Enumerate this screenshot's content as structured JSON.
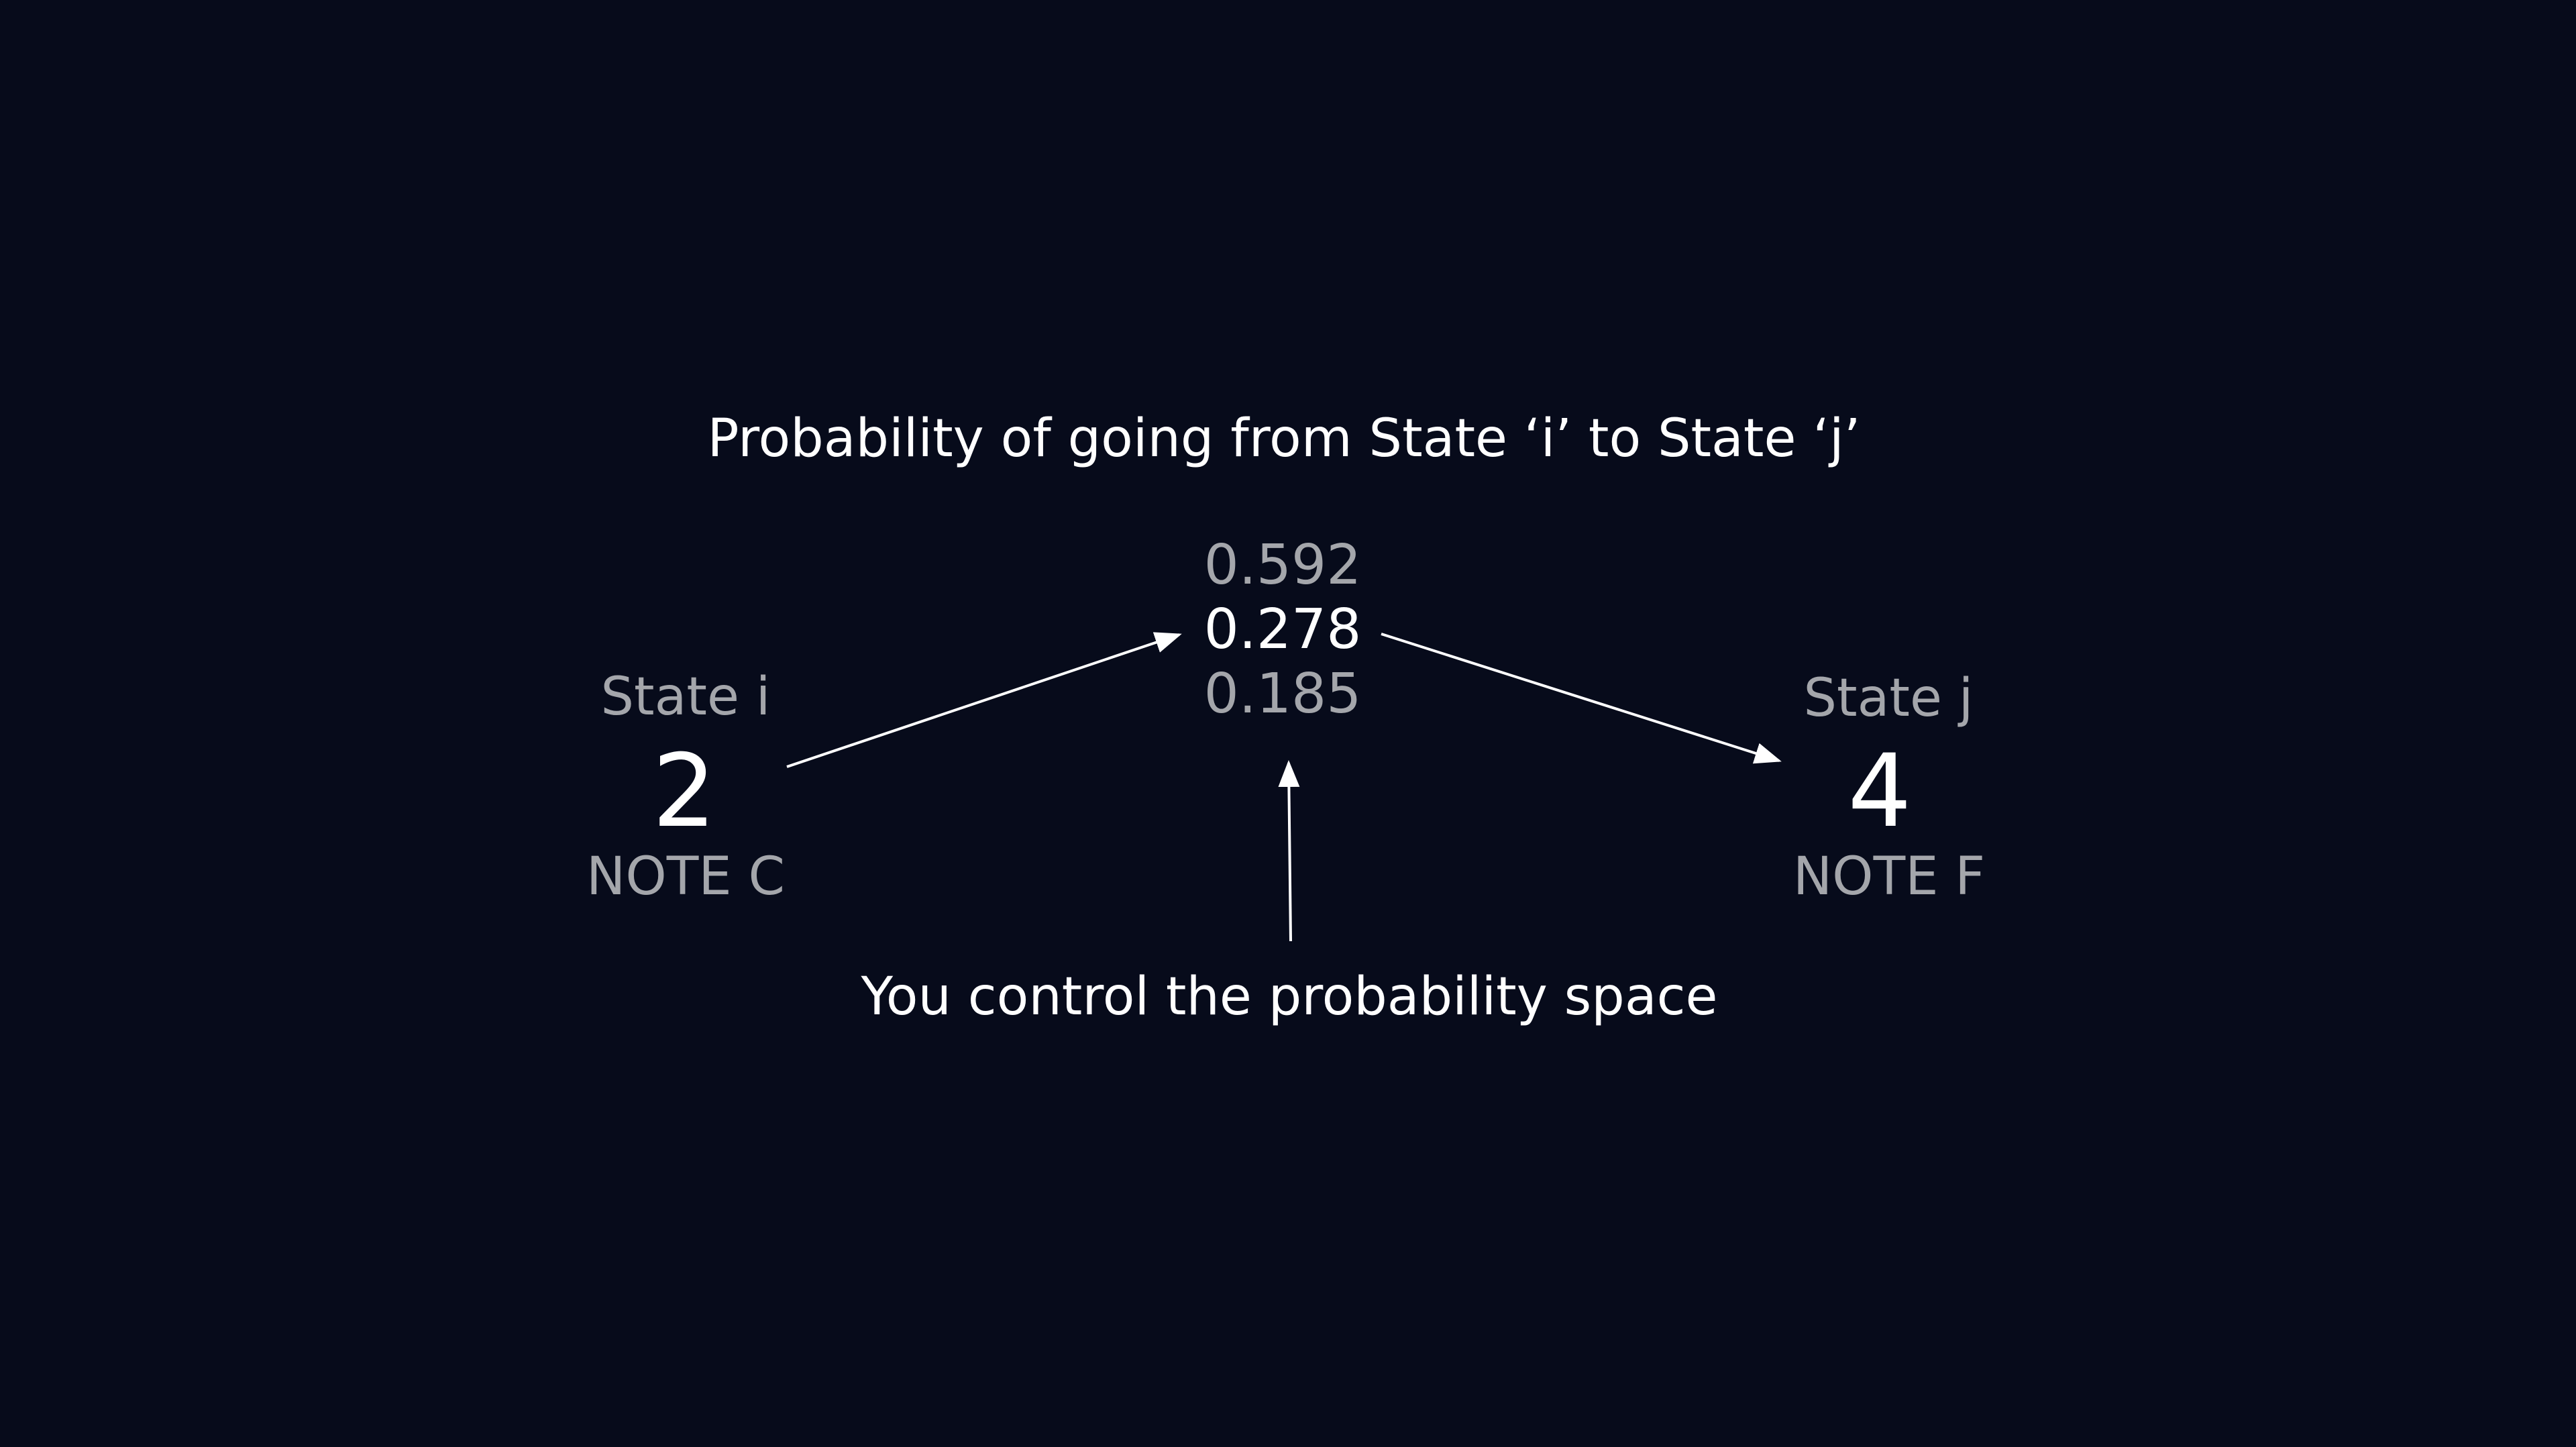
{
  "heading": "Probability of going from State ‘i’ to State ‘j’",
  "caption": "You control the probability space",
  "state_i": {
    "label": "State i",
    "number": "2",
    "note": "NOTE C"
  },
  "state_j": {
    "label": "State j",
    "number": "4",
    "note": "NOTE F"
  },
  "probabilities": [
    {
      "value": "0.592",
      "selected": false
    },
    {
      "value": "0.278",
      "selected": true
    },
    {
      "value": "0.185",
      "selected": false
    }
  ],
  "colors": {
    "background": "#070b1b",
    "primary_text": "#ffffff",
    "secondary_text": "#a4a6ab",
    "arrow": "#ffffff"
  }
}
